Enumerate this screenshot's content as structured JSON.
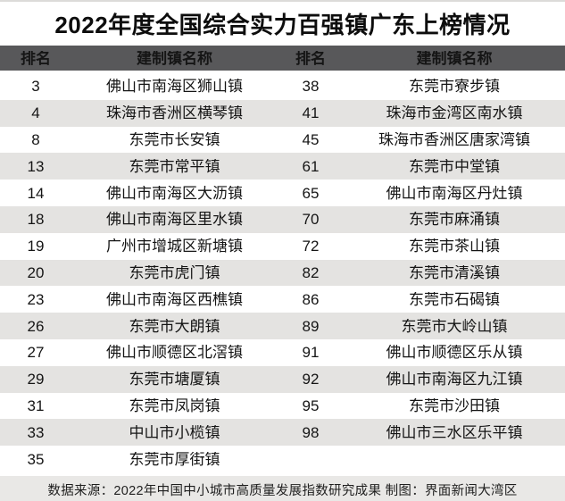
{
  "chart_data": {
    "type": "table",
    "title": "2022年度全国综合实力百强镇广东上榜情况",
    "columns": [
      "排名",
      "建制镇名称",
      "排名",
      "建制镇名称"
    ],
    "left_rows": [
      {
        "rank": "3",
        "town": "佛山市南海区狮山镇"
      },
      {
        "rank": "4",
        "town": "珠海市香洲区横琴镇"
      },
      {
        "rank": "8",
        "town": "东莞市长安镇"
      },
      {
        "rank": "13",
        "town": "东莞市常平镇"
      },
      {
        "rank": "14",
        "town": "佛山市南海区大沥镇"
      },
      {
        "rank": "18",
        "town": "佛山市南海区里水镇"
      },
      {
        "rank": "19",
        "town": "广州市增城区新塘镇"
      },
      {
        "rank": "20",
        "town": "东莞市虎门镇"
      },
      {
        "rank": "23",
        "town": "佛山市南海区西樵镇"
      },
      {
        "rank": "26",
        "town": "东莞市大朗镇"
      },
      {
        "rank": "27",
        "town": "佛山市顺德区北滘镇"
      },
      {
        "rank": "29",
        "town": "东莞市塘厦镇"
      },
      {
        "rank": "31",
        "town": "东莞市凤岗镇"
      },
      {
        "rank": "33",
        "town": "中山市小榄镇"
      },
      {
        "rank": "35",
        "town": "东莞市厚街镇"
      }
    ],
    "right_rows": [
      {
        "rank": "38",
        "town": "东莞市寮步镇"
      },
      {
        "rank": "41",
        "town": "珠海市金湾区南水镇"
      },
      {
        "rank": "45",
        "town": "珠海市香洲区唐家湾镇"
      },
      {
        "rank": "61",
        "town": "东莞市中堂镇"
      },
      {
        "rank": "65",
        "town": "佛山市南海区丹灶镇"
      },
      {
        "rank": "70",
        "town": "东莞市麻涌镇"
      },
      {
        "rank": "72",
        "town": "东莞市茶山镇"
      },
      {
        "rank": "82",
        "town": "东莞市清溪镇"
      },
      {
        "rank": "86",
        "town": "东莞市石碣镇"
      },
      {
        "rank": "89",
        "town": "东莞市大岭山镇"
      },
      {
        "rank": "91",
        "town": "佛山市顺德区乐从镇"
      },
      {
        "rank": "92",
        "town": "佛山市南海区九江镇"
      },
      {
        "rank": "95",
        "town": "东莞市沙田镇"
      },
      {
        "rank": "98",
        "town": "佛山市三水区乐平镇"
      }
    ],
    "source_note": "数据来源：2022年中国中小城市高质量发展指数研究成果 制图：界面新闻大湾区"
  },
  "colors": {
    "header_bg": "#58585a",
    "row_alt_bg": "#e4e3e1",
    "footer_bg": "#e9e8e6",
    "title_text": "#0d0d0d",
    "body_text": "#151515"
  }
}
